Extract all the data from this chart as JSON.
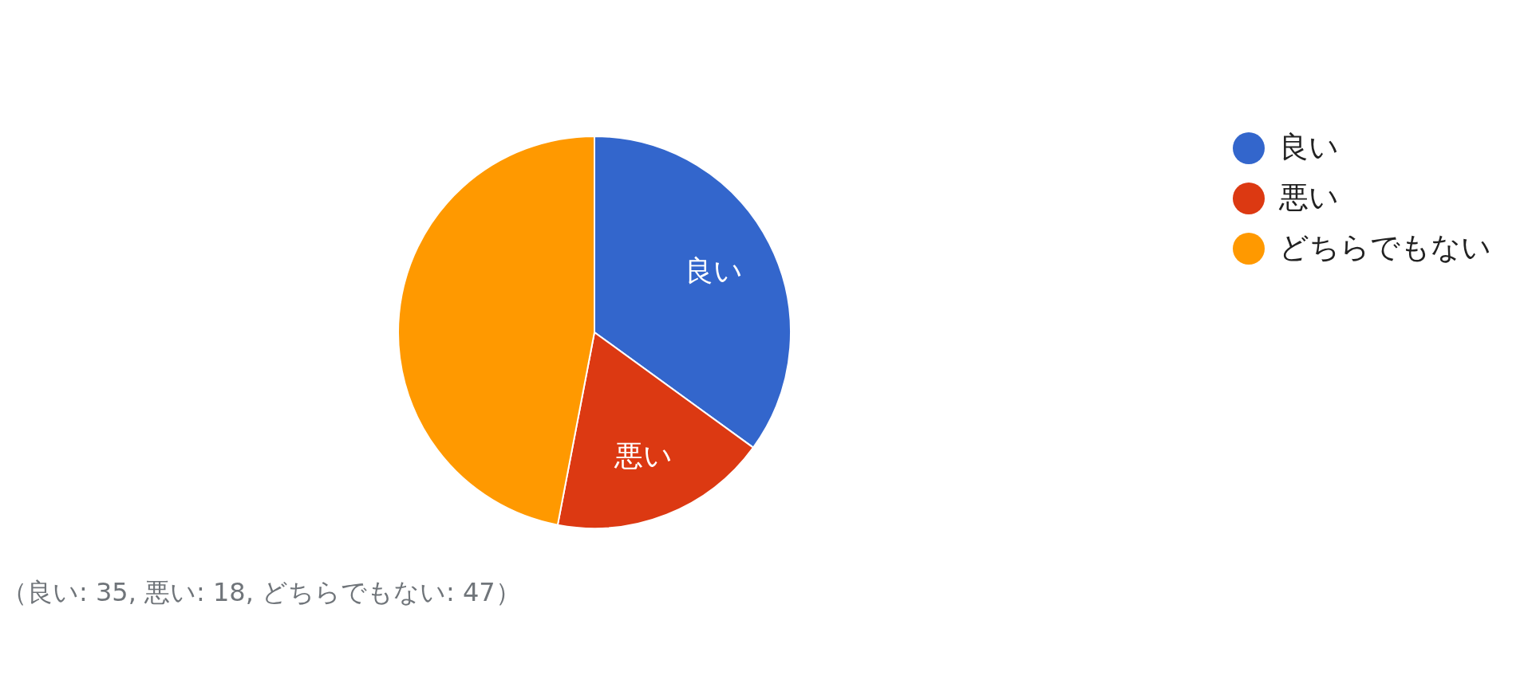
{
  "chart_data": {
    "type": "pie",
    "categories": [
      "良い",
      "悪い",
      "どちらでもない"
    ],
    "values": [
      35,
      18,
      47
    ],
    "colors": [
      "#3366cc",
      "#dc3912",
      "#ff9900"
    ],
    "value_labels": [
      "良い",
      "悪い",
      null
    ],
    "legend": "top right",
    "annotations": [
      "（良い: 35, 悪い: 18, どちらでもない: 47）"
    ]
  }
}
